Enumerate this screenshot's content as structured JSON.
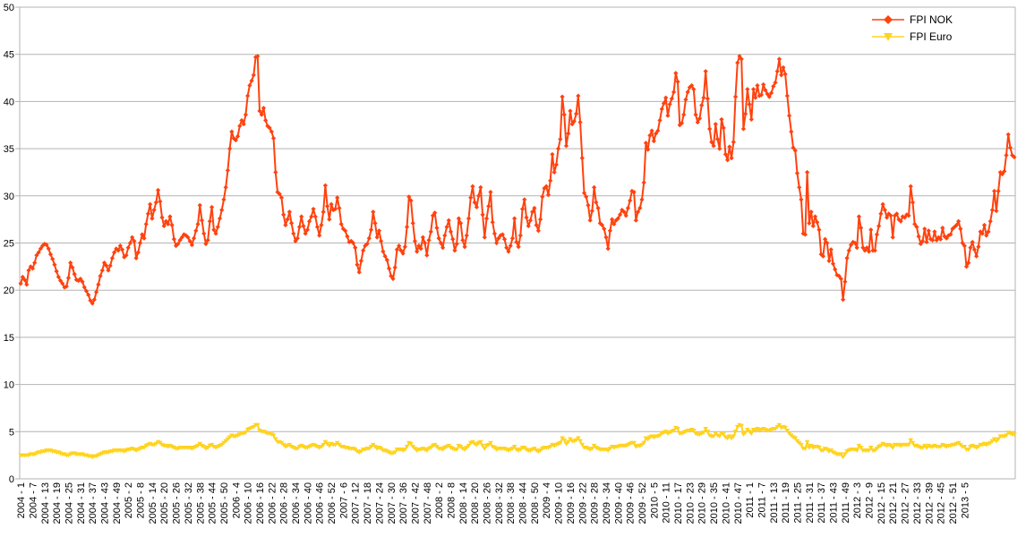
{
  "chart_data": {
    "type": "line",
    "title": "",
    "xlabel": "",
    "ylabel": "",
    "ylim": [
      0,
      50
    ],
    "yticks": [
      0,
      5,
      10,
      15,
      20,
      25,
      30,
      35,
      40,
      45,
      50
    ],
    "grid": "horizontal",
    "legend_position": "top-right",
    "x_tick_labels": [
      "2004 - 1",
      "2004 - 7",
      "2004 - 13",
      "2004 - 19",
      "2004 - 25",
      "2004 - 31",
      "2004 - 37",
      "2004 - 43",
      "2004 - 49",
      "2005 - 2",
      "2005 - 8",
      "2005 - 14",
      "2005 - 20",
      "2005 - 26",
      "2005 - 32",
      "2005 - 38",
      "2005 - 44",
      "2005 - 50",
      "2006 - 4",
      "2006 - 10",
      "2006 - 16",
      "2006 - 22",
      "2006 - 28",
      "2006 - 34",
      "2006 - 40",
      "2006 - 46",
      "2006 - 52",
      "2007 - 6",
      "2007 - 12",
      "2007 - 18",
      "2007 - 24",
      "2007 - 30",
      "2007 - 36",
      "2007 - 42",
      "2007 - 48",
      "2008 - 2",
      "2008 - 8",
      "2008 - 14",
      "2008 - 20",
      "2008 - 26",
      "2008 - 32",
      "2008 - 38",
      "2008 - 44",
      "2008 - 50",
      "2009 - 4",
      "2009 - 10",
      "2009 - 16",
      "2009 - 22",
      "2009 - 28",
      "2009 - 34",
      "2009 - 40",
      "2009 - 46",
      "2009 - 52",
      "2010 - 5",
      "2010 - 11",
      "2010 - 17",
      "2010 - 23",
      "2010 - 29",
      "2010 - 35",
      "2010 - 41",
      "2010 - 47",
      "2011 - 1",
      "2011 - 7",
      "2011 - 13",
      "2011 - 19",
      "2011 - 25",
      "2011 - 31",
      "2011 - 37",
      "2011 - 43",
      "2011 - 49",
      "2012 - 3",
      "2012 - 9",
      "2012 - 15",
      "2012 - 21",
      "2012 - 27",
      "2012 - 33",
      "2012 - 39",
      "2012 - 45",
      "2012 - 51",
      "2013 - 5"
    ],
    "series": [
      {
        "name": "FPI NOK",
        "color": "#ff420e",
        "marker": "diamond",
        "values": [
          20.7,
          21.4,
          21.1,
          20.6,
          22.1,
          22.5,
          22.3,
          22.9,
          23.7,
          24.0,
          24.4,
          24.7,
          24.9,
          24.8,
          24.4,
          23.8,
          23.3,
          22.7,
          22.0,
          21.4,
          21.0,
          20.7,
          20.3,
          20.4,
          21.3,
          22.9,
          22.4,
          21.7,
          21.1,
          21.0,
          21.2,
          20.9,
          20.3,
          19.9,
          19.5,
          18.9,
          18.6,
          19.0,
          19.8,
          20.6,
          21.5,
          22.1,
          22.9,
          22.6,
          22.1,
          22.6,
          23.4,
          24.0,
          24.4,
          24.2,
          24.7,
          24.3,
          23.5,
          23.7,
          24.5,
          25.0,
          25.6,
          25.2,
          23.4,
          24.0,
          25.0,
          25.9,
          25.5,
          27.0,
          28.1,
          29.1,
          27.6,
          28.5,
          29.3,
          30.6,
          29.4,
          27.7,
          26.8,
          27.3,
          27.0,
          27.8,
          26.9,
          25.4,
          24.7,
          24.9,
          25.3,
          25.6,
          25.9,
          25.8,
          25.6,
          25.2,
          24.8,
          25.5,
          26.3,
          27.0,
          29.0,
          27.4,
          26.0,
          24.9,
          25.3,
          27.3,
          28.8,
          26.4,
          26.0,
          26.7,
          27.6,
          28.5,
          29.6,
          30.9,
          32.7,
          35.0,
          36.8,
          36.1,
          35.9,
          36.3,
          37.4,
          38.0,
          37.6,
          38.6,
          40.6,
          41.7,
          42.2,
          42.8,
          44.7,
          44.8,
          39.0,
          38.6,
          39.3,
          38.0,
          37.4,
          37.2,
          36.8,
          36.1,
          32.5,
          30.4,
          30.2,
          29.8,
          28.0,
          26.9,
          27.5,
          28.3,
          27.1,
          26.0,
          25.2,
          25.5,
          26.7,
          27.8,
          26.8,
          26.0,
          26.4,
          27.3,
          27.8,
          28.6,
          27.8,
          26.7,
          25.8,
          26.9,
          28.3,
          31.1,
          28.9,
          27.5,
          29.1,
          28.5,
          28.6,
          29.8,
          28.7,
          27.0,
          26.5,
          26.3,
          25.7,
          25.1,
          25.2,
          25.0,
          24.5,
          22.7,
          21.9,
          23.1,
          24.2,
          24.7,
          24.9,
          25.5,
          26.4,
          28.3,
          27.1,
          25.6,
          26.3,
          25.2,
          24.1,
          23.6,
          23.2,
          22.3,
          21.5,
          21.2,
          22.4,
          24.3,
          24.7,
          24.2,
          23.9,
          24.6,
          26.7,
          29.9,
          29.5,
          27.1,
          25.2,
          24.1,
          24.7,
          24.4,
          25.6,
          25.0,
          23.7,
          25.3,
          26.2,
          27.9,
          28.2,
          26.6,
          25.5,
          25.0,
          24.5,
          25.8,
          26.7,
          27.4,
          26.2,
          25.4,
          24.2,
          24.9,
          27.6,
          27.1,
          25.3,
          24.6,
          25.8,
          27.6,
          29.8,
          31.0,
          29.3,
          28.8,
          30.0,
          30.9,
          28.0,
          25.6,
          27.6,
          28.9,
          30.4,
          27.2,
          26.0,
          25.0,
          25.5,
          25.8,
          25.9,
          25.4,
          24.5,
          24.1,
          24.7,
          25.5,
          27.6,
          25.1,
          24.6,
          25.8,
          28.6,
          29.6,
          27.7,
          26.8,
          27.4,
          28.3,
          28.7,
          26.9,
          26.3,
          27.5,
          29.9,
          30.8,
          31.0,
          30.1,
          31.6,
          34.4,
          32.5,
          33.3,
          35.0,
          36.0,
          40.5,
          38.6,
          35.3,
          36.6,
          39.0,
          37.6,
          37.9,
          38.7,
          40.6,
          37.8,
          34.0,
          30.3,
          29.9,
          29.0,
          27.4,
          28.4,
          30.9,
          29.3,
          28.7,
          27.1,
          26.9,
          26.5,
          25.6,
          24.4,
          26.3,
          27.5,
          27.0,
          27.4,
          27.6,
          28.0,
          28.5,
          28.3,
          27.9,
          28.7,
          29.5,
          30.5,
          30.4,
          27.4,
          28.3,
          28.7,
          29.6,
          31.4,
          35.6,
          34.9,
          36.4,
          36.9,
          35.8,
          36.6,
          36.9,
          38.0,
          39.2,
          39.8,
          40.4,
          38.5,
          39.7,
          40.3,
          41.0,
          43.0,
          42.1,
          37.5,
          37.7,
          38.6,
          40.2,
          41.0,
          41.5,
          41.7,
          41.3,
          38.6,
          37.8,
          38.2,
          39.6,
          40.4,
          43.2,
          40.3,
          37.1,
          35.7,
          35.3,
          37.6,
          36.0,
          35.0,
          38.1,
          37.2,
          34.4,
          33.8,
          35.2,
          34.0,
          35.7,
          40.5,
          44.1,
          44.8,
          44.5,
          37.1,
          38.7,
          41.3,
          39.7,
          38.1,
          41.3,
          40.4,
          41.7,
          40.6,
          40.7,
          41.8,
          41.2,
          40.8,
          40.5,
          40.9,
          41.6,
          42.0,
          43.2,
          44.5,
          42.8,
          43.6,
          42.9,
          40.6,
          38.5,
          36.8,
          35.1,
          34.8,
          32.4,
          30.9,
          29.6,
          26.0,
          25.9,
          32.5,
          27.1,
          28.3,
          26.8,
          27.8,
          27.2,
          26.4,
          23.8,
          23.6,
          25.4,
          25.0,
          23.1,
          24.3,
          22.8,
          22.2,
          21.6,
          21.5,
          21.2,
          19.0,
          20.9,
          23.4,
          24.2,
          24.8,
          25.1,
          25.0,
          24.5,
          27.8,
          26.6,
          24.5,
          24.2,
          24.5,
          24.1,
          26.4,
          24.2,
          24.2,
          25.9,
          26.8,
          28.1,
          29.1,
          28.5,
          27.7,
          28.1,
          27.9,
          25.6,
          27.9,
          28.1,
          27.5,
          27.3,
          27.8,
          27.7,
          28.0,
          27.9,
          31.0,
          29.3,
          27.0,
          26.7,
          25.7,
          24.9,
          25.2,
          26.5,
          25.1,
          26.3,
          25.4,
          25.3,
          26.2,
          25.3,
          25.6,
          25.4,
          26.6,
          25.7,
          25.5,
          25.8,
          25.9,
          26.5,
          26.7,
          26.9,
          27.3,
          26.5,
          25.0,
          24.7,
          22.5,
          22.9,
          24.5,
          25.1,
          24.3,
          23.6,
          24.6,
          26.2,
          26.0,
          26.9,
          25.8,
          26.2,
          27.3,
          28.5,
          30.5,
          28.4,
          30.5,
          32.5,
          32.3,
          32.6,
          34.3,
          36.5,
          35.1,
          34.3,
          34.1
        ]
      },
      {
        "name": "FPI Euro",
        "color": "#ffd320",
        "marker": "triangle-down",
        "values": [
          2.5,
          2.5,
          2.5,
          2.5,
          2.5,
          2.6,
          2.6,
          2.6,
          2.7,
          2.8,
          2.8,
          2.9,
          2.9,
          3.0,
          3.0,
          3.0,
          2.9,
          2.9,
          2.8,
          2.8,
          2.7,
          2.6,
          2.6,
          2.5,
          2.5,
          2.6,
          2.7,
          2.7,
          2.6,
          2.6,
          2.6,
          2.6,
          2.5,
          2.5,
          2.4,
          2.4,
          2.3,
          2.4,
          2.4,
          2.5,
          2.6,
          2.7,
          2.8,
          2.8,
          2.8,
          2.9,
          2.9,
          3.0,
          3.0,
          3.0,
          3.0,
          3.0,
          2.9,
          3.0,
          3.1,
          3.1,
          3.2,
          3.1,
          3.0,
          3.1,
          3.2,
          3.3,
          3.3,
          3.5,
          3.6,
          3.7,
          3.6,
          3.6,
          3.7,
          3.9,
          3.8,
          3.6,
          3.5,
          3.5,
          3.4,
          3.5,
          3.4,
          3.3,
          3.2,
          3.2,
          3.3,
          3.3,
          3.3,
          3.3,
          3.3,
          3.3,
          3.2,
          3.3,
          3.4,
          3.5,
          3.7,
          3.5,
          3.4,
          3.2,
          3.3,
          3.5,
          3.6,
          3.4,
          3.3,
          3.4,
          3.5,
          3.6,
          3.8,
          4.0,
          4.2,
          4.4,
          4.6,
          4.5,
          4.5,
          4.6,
          4.7,
          4.8,
          4.8,
          4.9,
          5.2,
          5.3,
          5.4,
          5.5,
          5.7,
          5.7,
          5.1,
          5.0,
          5.0,
          4.9,
          4.8,
          4.8,
          4.7,
          4.6,
          4.2,
          3.9,
          3.9,
          3.8,
          3.6,
          3.4,
          3.5,
          3.6,
          3.4,
          3.3,
          3.2,
          3.2,
          3.4,
          3.5,
          3.4,
          3.3,
          3.3,
          3.4,
          3.5,
          3.6,
          3.5,
          3.4,
          3.3,
          3.4,
          3.6,
          3.9,
          3.7,
          3.5,
          3.7,
          3.6,
          3.6,
          3.8,
          3.6,
          3.4,
          3.4,
          3.3,
          3.3,
          3.2,
          3.2,
          3.2,
          3.1,
          2.9,
          2.8,
          2.9,
          3.1,
          3.1,
          3.2,
          3.2,
          3.4,
          3.6,
          3.4,
          3.2,
          3.3,
          3.2,
          3.0,
          3.0,
          2.9,
          2.8,
          2.7,
          2.7,
          2.8,
          3.1,
          3.1,
          3.1,
          3.0,
          3.1,
          3.4,
          3.8,
          3.7,
          3.4,
          3.2,
          3.0,
          3.1,
          3.1,
          3.2,
          3.1,
          3.0,
          3.2,
          3.3,
          3.5,
          3.6,
          3.4,
          3.2,
          3.2,
          3.1,
          3.3,
          3.4,
          3.5,
          3.3,
          3.2,
          3.1,
          3.1,
          3.5,
          3.4,
          3.2,
          3.1,
          3.3,
          3.5,
          3.8,
          3.9,
          3.7,
          3.6,
          3.8,
          3.9,
          3.5,
          3.2,
          3.5,
          3.6,
          3.8,
          3.4,
          3.3,
          3.1,
          3.2,
          3.2,
          3.2,
          3.2,
          3.1,
          3.0,
          3.1,
          3.2,
          3.4,
          3.1,
          3.0,
          3.1,
          3.3,
          3.3,
          3.1,
          3.0,
          3.0,
          3.1,
          3.2,
          3.0,
          2.9,
          3.0,
          3.2,
          3.3,
          3.3,
          3.3,
          3.4,
          3.6,
          3.5,
          3.6,
          3.7,
          3.8,
          4.3,
          4.1,
          3.7,
          3.9,
          4.2,
          4.0,
          4.0,
          4.1,
          4.3,
          4.0,
          3.6,
          3.3,
          3.3,
          3.2,
          3.1,
          3.2,
          3.5,
          3.3,
          3.2,
          3.1,
          3.1,
          3.1,
          3.1,
          3.0,
          3.2,
          3.4,
          3.3,
          3.4,
          3.4,
          3.5,
          3.5,
          3.5,
          3.5,
          3.6,
          3.7,
          3.8,
          3.8,
          3.4,
          3.5,
          3.5,
          3.6,
          3.8,
          4.3,
          4.2,
          4.4,
          4.5,
          4.4,
          4.5,
          4.5,
          4.6,
          4.8,
          4.9,
          5.0,
          4.8,
          4.9,
          5.0,
          5.1,
          5.4,
          5.3,
          4.8,
          4.8,
          4.9,
          5.0,
          5.1,
          5.1,
          5.2,
          5.1,
          4.8,
          4.7,
          4.7,
          4.8,
          4.9,
          5.3,
          5.0,
          4.6,
          4.5,
          4.5,
          4.8,
          4.6,
          4.5,
          4.8,
          4.7,
          4.4,
          4.3,
          4.5,
          4.3,
          4.5,
          5.0,
          5.5,
          5.7,
          5.6,
          4.7,
          4.9,
          5.2,
          5.0,
          4.8,
          5.2,
          5.1,
          5.3,
          5.1,
          5.2,
          5.3,
          5.2,
          5.1,
          5.1,
          5.2,
          5.3,
          5.3,
          5.5,
          5.7,
          5.4,
          5.5,
          5.4,
          5.1,
          4.8,
          4.6,
          4.4,
          4.3,
          4.0,
          3.8,
          3.6,
          3.2,
          3.2,
          3.9,
          3.3,
          3.5,
          3.3,
          3.4,
          3.4,
          3.3,
          3.0,
          3.0,
          3.2,
          3.1,
          2.9,
          3.0,
          2.8,
          2.7,
          2.6,
          2.6,
          2.6,
          2.3,
          2.6,
          2.9,
          3.0,
          3.1,
          3.1,
          3.1,
          3.0,
          3.5,
          3.3,
          3.0,
          3.0,
          3.0,
          3.0,
          3.3,
          3.0,
          3.0,
          3.2,
          3.4,
          3.5,
          3.7,
          3.6,
          3.5,
          3.6,
          3.5,
          3.3,
          3.6,
          3.6,
          3.6,
          3.5,
          3.6,
          3.6,
          3.6,
          3.6,
          4.1,
          3.8,
          3.5,
          3.5,
          3.4,
          3.3,
          3.3,
          3.5,
          3.3,
          3.5,
          3.4,
          3.4,
          3.5,
          3.4,
          3.4,
          3.4,
          3.6,
          3.5,
          3.4,
          3.5,
          3.5,
          3.6,
          3.6,
          3.7,
          3.8,
          3.6,
          3.4,
          3.4,
          3.1,
          3.1,
          3.4,
          3.5,
          3.4,
          3.3,
          3.4,
          3.6,
          3.6,
          3.7,
          3.6,
          3.7,
          3.8,
          4.0,
          4.2,
          4.0,
          4.2,
          4.5,
          4.5,
          4.5,
          4.6,
          4.9,
          4.8,
          4.7,
          4.7
        ]
      }
    ]
  }
}
